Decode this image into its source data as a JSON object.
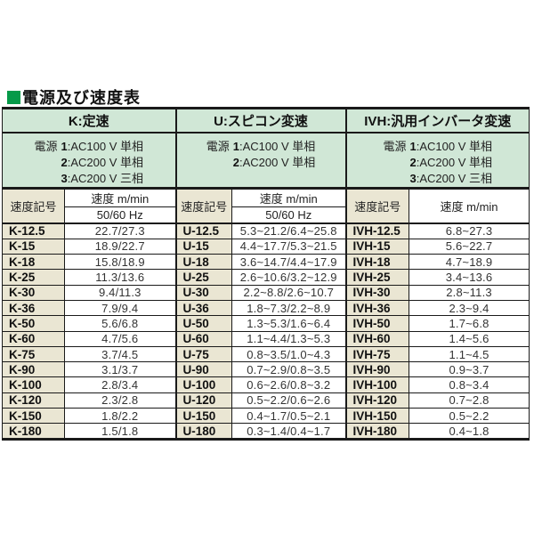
{
  "page_title": "電源及び速度表",
  "colors": {
    "header_green": "#d0e7d6",
    "code_beige": "#eae6d3",
    "border_black": "#1a1a1a",
    "bullet_green": "#069a49"
  },
  "table": {
    "sections": [
      {
        "key": "K",
        "header": "K:定速",
        "power_label": "電源",
        "power": [
          {
            "num": "1",
            "text": ":AC100 V 単相"
          },
          {
            "num": "2",
            "text": ":AC200 V 単相"
          },
          {
            "num": "3",
            "text": ":AC200 V 三相"
          }
        ],
        "col_code": "速度記号",
        "col_speed": "速度 m/min",
        "col_freq": "50/60 Hz",
        "rows": [
          {
            "code": "K-12.5",
            "value": "22.7/27.3"
          },
          {
            "code": "K-15",
            "value": "18.9/22.7"
          },
          {
            "code": "K-18",
            "value": "15.8/18.9"
          },
          {
            "code": "K-25",
            "value": "11.3/13.6"
          },
          {
            "code": "K-30",
            "value": "9.4/11.3"
          },
          {
            "code": "K-36",
            "value": "7.9/9.4"
          },
          {
            "code": "K-50",
            "value": "5.6/6.8"
          },
          {
            "code": "K-60",
            "value": "4.7/5.6"
          },
          {
            "code": "K-75",
            "value": "3.7/4.5"
          },
          {
            "code": "K-90",
            "value": "3.1/3.7"
          },
          {
            "code": "K-100",
            "value": "2.8/3.4"
          },
          {
            "code": "K-120",
            "value": "2.3/2.8"
          },
          {
            "code": "K-150",
            "value": "1.8/2.2"
          },
          {
            "code": "K-180",
            "value": "1.5/1.8"
          }
        ]
      },
      {
        "key": "U",
        "header": "U:スピコン変速",
        "power_label": "電源",
        "power": [
          {
            "num": "1",
            "text": ":AC100 V 単相"
          },
          {
            "num": "2",
            "text": ":AC200 V 単相"
          }
        ],
        "col_code": "速度記号",
        "col_speed": "速度 m/min",
        "col_freq": "50/60 Hz",
        "rows": [
          {
            "code": "U-12.5",
            "value": "5.3~21.2/6.4~25.8"
          },
          {
            "code": "U-15",
            "value": "4.4~17.7/5.3~21.5"
          },
          {
            "code": "U-18",
            "value": "3.6~14.7/4.4~17.9"
          },
          {
            "code": "U-25",
            "value": "2.6~10.6/3.2~12.9"
          },
          {
            "code": "U-30",
            "value": "2.2~8.8/2.6~10.7"
          },
          {
            "code": "U-36",
            "value": "1.8~7.3/2.2~8.9"
          },
          {
            "code": "U-50",
            "value": "1.3~5.3/1.6~6.4"
          },
          {
            "code": "U-60",
            "value": "1.1~4.4/1.3~5.3"
          },
          {
            "code": "U-75",
            "value": "0.8~3.5/1.0~4.3"
          },
          {
            "code": "U-90",
            "value": "0.7~2.9/0.8~3.5"
          },
          {
            "code": "U-100",
            "value": "0.6~2.6/0.8~3.2"
          },
          {
            "code": "U-120",
            "value": "0.5~2.2/0.6~2.6"
          },
          {
            "code": "U-150",
            "value": "0.4~1.7/0.5~2.1"
          },
          {
            "code": "U-180",
            "value": "0.3~1.4/0.4~1.7"
          }
        ]
      },
      {
        "key": "IVH",
        "header": "IVH:汎用インバータ変速",
        "power_label": "電源",
        "power": [
          {
            "num": "1",
            "text": ":AC100 V 単相"
          },
          {
            "num": "2",
            "text": ":AC200 V 単相"
          },
          {
            "num": "3",
            "text": ":AC200 V 三相"
          }
        ],
        "col_code": "速度記号",
        "col_speed": "速度 m/min",
        "col_freq": null,
        "rows": [
          {
            "code": "IVH-12.5",
            "value": "6.8~27.3"
          },
          {
            "code": "IVH-15",
            "value": "5.6~22.7"
          },
          {
            "code": "IVH-18",
            "value": "4.7~18.9"
          },
          {
            "code": "IVH-25",
            "value": "3.4~13.6"
          },
          {
            "code": "IVH-30",
            "value": "2.8~11.3"
          },
          {
            "code": "IVH-36",
            "value": "2.3~9.4"
          },
          {
            "code": "IVH-50",
            "value": "1.7~6.8"
          },
          {
            "code": "IVH-60",
            "value": "1.4~5.6"
          },
          {
            "code": "IVH-75",
            "value": "1.1~4.5"
          },
          {
            "code": "IVH-90",
            "value": "0.9~3.7"
          },
          {
            "code": "IVH-100",
            "value": "0.8~3.4"
          },
          {
            "code": "IVH-120",
            "value": "0.7~2.8"
          },
          {
            "code": "IVH-150",
            "value": "0.5~2.2"
          },
          {
            "code": "IVH-180",
            "value": "0.4~1.8"
          }
        ]
      }
    ]
  }
}
